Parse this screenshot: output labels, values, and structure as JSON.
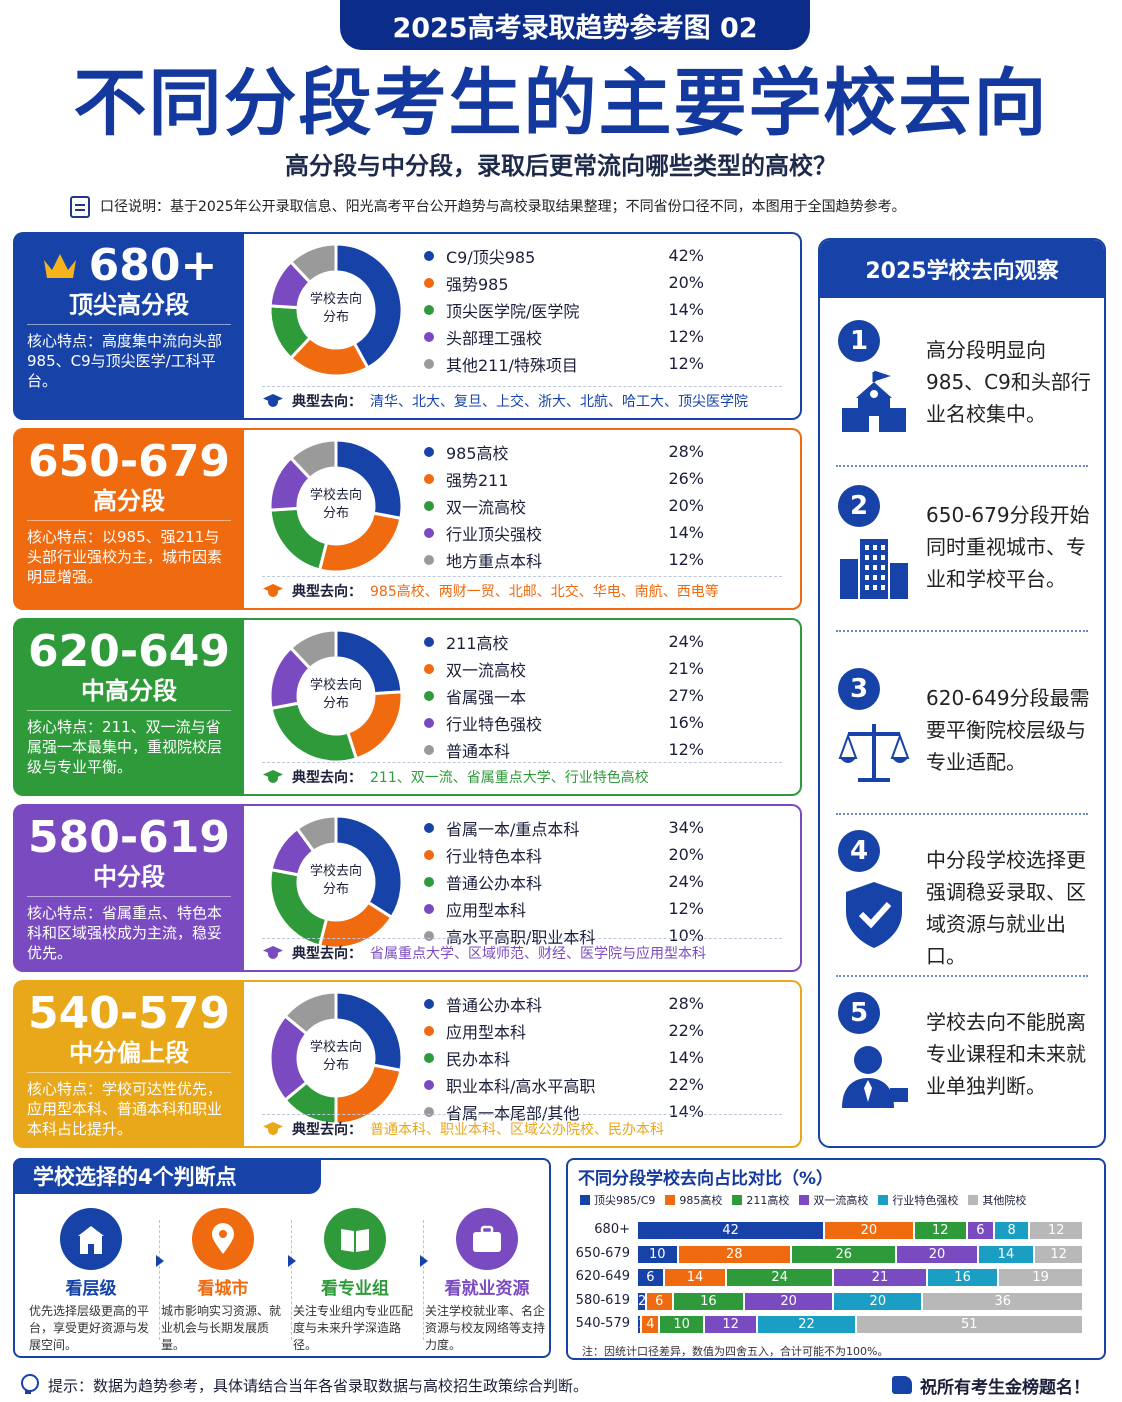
{
  "header": {
    "badge": "2025高考录取趋势参考图 02",
    "title": "不同分段考生的主要学校去向",
    "subtitle": "高分段与中分段，录取后更常流向哪些类型的高校？",
    "note": "口径说明：基于2025年公开录取信息、阳光高考平台公开趋势与高校录取结果整理；不同省份口径不同，本图用于全国趋势参考。"
  },
  "donut_center": "学校去向\n分布",
  "typical_prefix": "典型去向：",
  "chart_data": [
    {
      "type": "pie",
      "range": "680+",
      "name": "顶尖高分段",
      "feature": "核心特点：高度集中流向头部985、C9与顶尖医学/工科平台。",
      "categories": [
        "C9/顶尖985",
        "强势985",
        "顶尖医学院/医学院",
        "头部理工强校",
        "其他211/特殊项目"
      ],
      "values": [
        42,
        20,
        14,
        12,
        12
      ],
      "typical": "清华、北大、复旦、上交、浙大、北航、哈工大、顶尖医学院"
    },
    {
      "type": "pie",
      "range": "650-679",
      "name": "高分段",
      "feature": "核心特点：以985、强211与头部行业强校为主，城市因素明显增强。",
      "categories": [
        "985高校",
        "强势211",
        "双一流高校",
        "行业顶尖强校",
        "地方重点本科"
      ],
      "values": [
        28,
        26,
        20,
        14,
        12
      ],
      "typical": "985高校、两财一贸、北邮、北交、华电、南航、西电等"
    },
    {
      "type": "pie",
      "range": "620-649",
      "name": "中高分段",
      "feature": "核心特点：211、双一流与省属强一本最集中，重视院校层级与专业平衡。",
      "categories": [
        "211高校",
        "双一流高校",
        "省属强一本",
        "行业特色强校",
        "普通本科"
      ],
      "values": [
        24,
        21,
        27,
        16,
        12
      ],
      "typical": "211、双一流、省属重点大学、行业特色高校"
    },
    {
      "type": "pie",
      "range": "580-619",
      "name": "中分段",
      "feature": "核心特点：省属重点、特色本科和区域强校成为主流，稳妥优先。",
      "categories": [
        "省属一本/重点本科",
        "行业特色本科",
        "普通公办本科",
        "应用型本科",
        "高水平高职/职业本科"
      ],
      "values": [
        34,
        20,
        24,
        12,
        10
      ],
      "typical": "省属重点大学、区域师范、财经、医学院与应用型本科"
    },
    {
      "type": "pie",
      "range": "540-579",
      "name": "中分偏上段",
      "feature": "核心特点：学校可达性优先，应用型本科、普通本科和职业本科占比提升。",
      "categories": [
        "普通公办本科",
        "应用型本科",
        "民办本科",
        "职业本科/高水平高职",
        "省属一本尾部/其他"
      ],
      "values": [
        28,
        22,
        14,
        22,
        14
      ],
      "typical": "普通本科、职业本科、区域公办院校、民办本科"
    },
    {
      "type": "bar",
      "stacked": true,
      "orientation": "horizontal",
      "title": "不同分段学校去向占比对比（%）",
      "categories": [
        "680+",
        "650-679",
        "620-649",
        "580-619",
        "540-579"
      ],
      "series": [
        {
          "name": "顶尖985/C9",
          "values": [
            42,
            10,
            6,
            2,
            1
          ]
        },
        {
          "name": "985高校",
          "values": [
            20,
            28,
            14,
            6,
            4
          ]
        },
        {
          "name": "211高校",
          "values": [
            12,
            26,
            24,
            16,
            10
          ]
        },
        {
          "name": "双一流高校",
          "values": [
            6,
            20,
            21,
            20,
            12
          ]
        },
        {
          "name": "行业特色强校",
          "values": [
            8,
            14,
            16,
            20,
            22
          ]
        },
        {
          "name": "其他院校",
          "values": [
            12,
            12,
            19,
            36,
            51
          ]
        }
      ],
      "note": "注：因统计口径差异，数值为四舍五入，合计可能不为100%。"
    }
  ],
  "segment_colors": [
    "#1743a8",
    "#f06a0f",
    "#2f9a3a",
    "#7a4bc0",
    "#e9a71a"
  ],
  "pie_colors": [
    "#1743a8",
    "#f06a0f",
    "#2f9a3a",
    "#7a4bc0",
    "#9a9a9a"
  ],
  "bar_colors": [
    "#1743a8",
    "#f06a0f",
    "#2f9a3a",
    "#7a4bc0",
    "#1a9ec4",
    "#b8b8b8"
  ],
  "observation": {
    "title": "2025学校去向观察",
    "items": [
      {
        "num": "1",
        "text": "高分段明显向985、C9和头部行业名校集中。",
        "icon": "school-building-icon"
      },
      {
        "num": "2",
        "text": "650-679分段开始同时重视城市、专业和学校平台。",
        "icon": "city-buildings-icon"
      },
      {
        "num": "3",
        "text": "620-649分段最需要平衡院校层级与专业适配。",
        "icon": "balance-scale-icon"
      },
      {
        "num": "4",
        "text": "中分段学校选择更强调稳妥录取、区域资源与就业出口。",
        "icon": "shield-check-icon"
      },
      {
        "num": "5",
        "text": "学校去向不能脱离专业课程和未来就业单独判断。",
        "icon": "person-tie-icon"
      }
    ]
  },
  "judge": {
    "title": "学校选择的4个判断点",
    "cards": [
      {
        "name": "看层级",
        "desc": "优先选择层级更高的平台，享受更好资源与发展空间。",
        "color": "#1743a8",
        "icon": "building-icon"
      },
      {
        "name": "看城市",
        "desc": "城市影响实习资源、就业机会与长期发展质量。",
        "color": "#f06a0f",
        "icon": "location-pin-icon"
      },
      {
        "name": "看专业组",
        "desc": "关注专业组内专业匹配度与未来升学深造路径。",
        "color": "#2f9a3a",
        "icon": "book-icon"
      },
      {
        "name": "看就业资源",
        "desc": "关注学校就业率、名企资源与校友网络等支持力度。",
        "color": "#7a4bc0",
        "icon": "briefcase-icon"
      }
    ]
  },
  "footer": {
    "tip": "提示：数据为趋势参考，具体请结合当年各省录取数据与高校招生政策综合判断。",
    "right": "祝所有考生金榜题名！"
  }
}
